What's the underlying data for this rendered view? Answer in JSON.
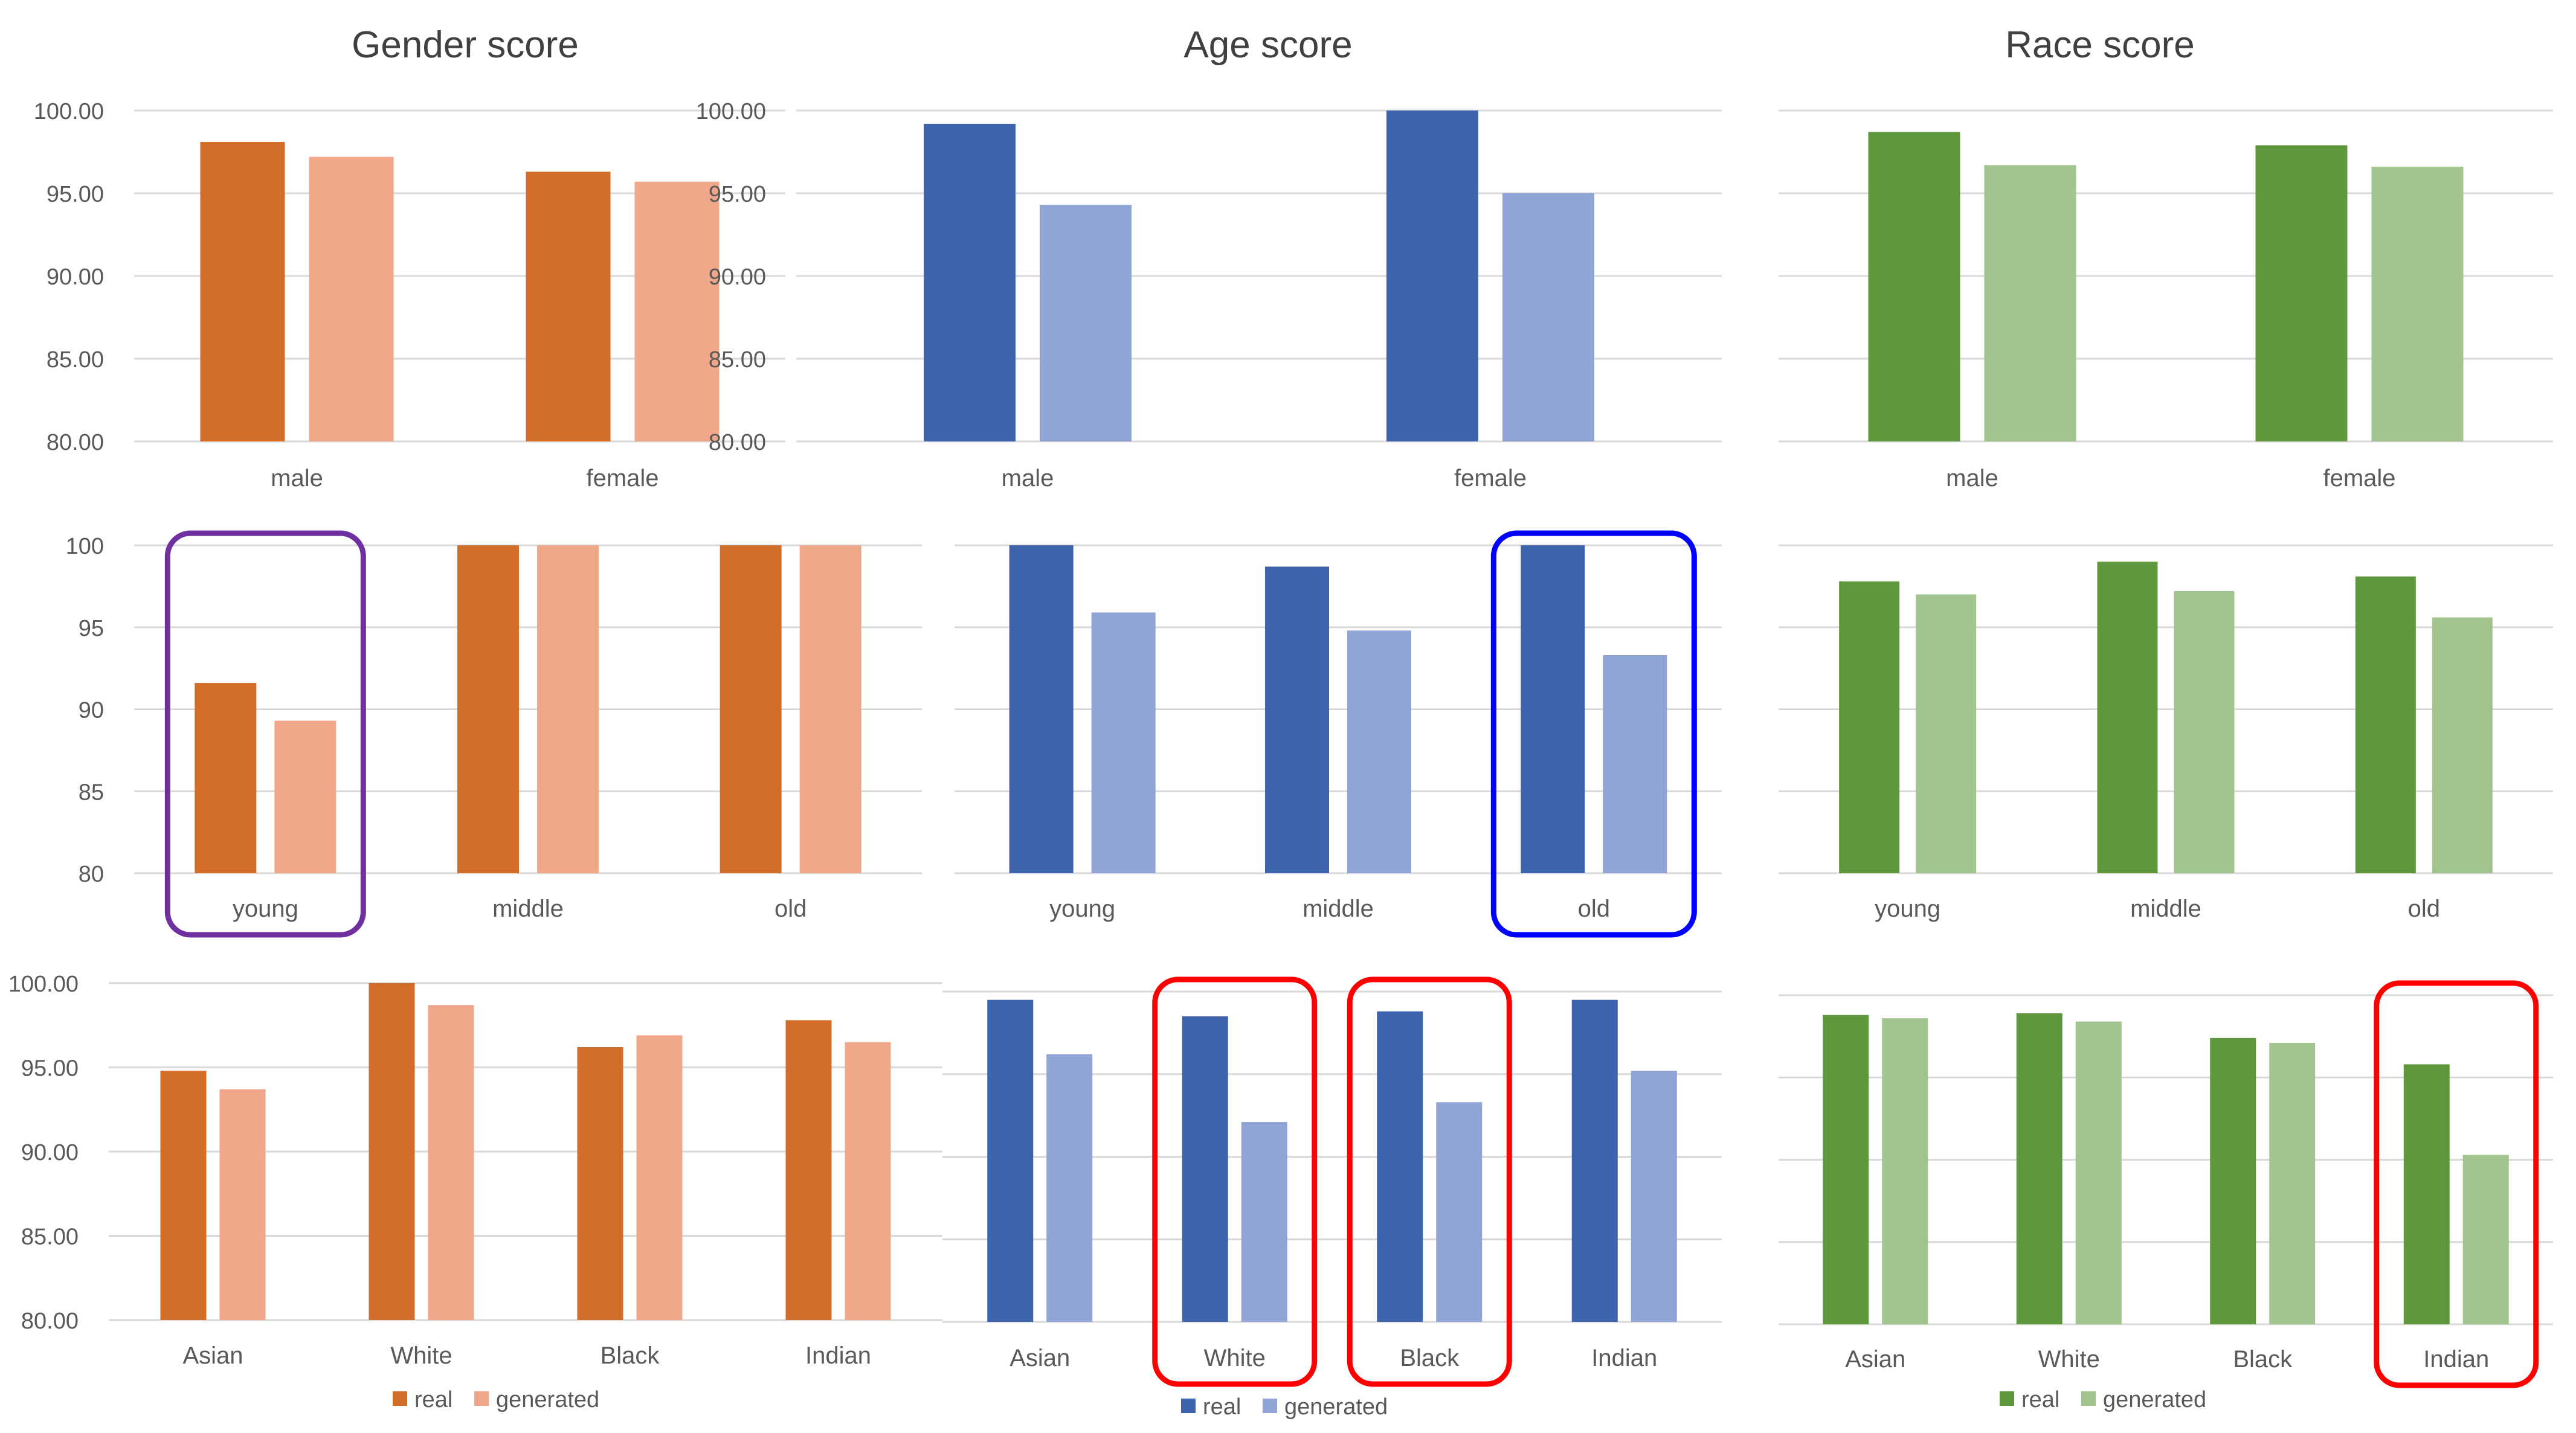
{
  "colors": {
    "gender_real": "#D26E2A",
    "gender_generated": "#F0A78A",
    "age_real": "#3D64AD",
    "age_generated": "#90A4D5",
    "race_real": "#5F983C",
    "race_generated": "#A2C48E",
    "grid": "#D9D9D9",
    "text": "#595959",
    "title": "#404040",
    "box_purple": "#7030A0",
    "box_blue": "#0000FF",
    "box_red": "#FF0000"
  },
  "column_titles": [
    "Gender score",
    "Age score",
    "Race score"
  ],
  "legend": {
    "real": "real",
    "generated": "generated"
  },
  "chart_data": [
    {
      "type": "bar",
      "panel": "gender-by-gender",
      "title": "Gender score",
      "categories": [
        "male",
        "female"
      ],
      "series": [
        {
          "name": "real",
          "values": [
            98.1,
            96.3
          ]
        },
        {
          "name": "generated",
          "values": [
            97.2,
            95.7
          ]
        }
      ],
      "ylim": [
        80,
        100
      ],
      "yticks": [
        "80.00",
        "85.00",
        "90.00",
        "95.00",
        "100.00"
      ],
      "grid": true,
      "highlight": []
    },
    {
      "type": "bar",
      "panel": "age-by-gender",
      "title": "Age score",
      "categories": [
        "male",
        "female"
      ],
      "series": [
        {
          "name": "real",
          "values": [
            99.2,
            100.0
          ]
        },
        {
          "name": "generated",
          "values": [
            94.3,
            95.0
          ]
        }
      ],
      "ylim": [
        80,
        100
      ],
      "yticks": [
        "80.00",
        "85.00",
        "90.00",
        "95.00",
        "100.00"
      ],
      "grid": true,
      "highlight": []
    },
    {
      "type": "bar",
      "panel": "race-by-gender",
      "title": "Race score",
      "categories": [
        "male",
        "female"
      ],
      "series": [
        {
          "name": "real",
          "values": [
            98.7,
            97.9
          ]
        },
        {
          "name": "generated",
          "values": [
            96.7,
            96.6
          ]
        }
      ],
      "ylim": [
        80,
        100
      ],
      "yticks": [],
      "grid": true,
      "highlight": []
    },
    {
      "type": "bar",
      "panel": "gender-by-age",
      "categories": [
        "young",
        "middle",
        "old"
      ],
      "series": [
        {
          "name": "real",
          "values": [
            91.6,
            100,
            100
          ]
        },
        {
          "name": "generated",
          "values": [
            89.3,
            100,
            100
          ]
        }
      ],
      "ylim": [
        80,
        100
      ],
      "yticks": [
        "80",
        "85",
        "90",
        "95",
        "100"
      ],
      "grid": true,
      "highlight": [
        {
          "index": 0,
          "color": "purple"
        }
      ]
    },
    {
      "type": "bar",
      "panel": "age-by-age",
      "categories": [
        "young",
        "middle",
        "old"
      ],
      "series": [
        {
          "name": "real",
          "values": [
            100,
            98.7,
            100
          ]
        },
        {
          "name": "generated",
          "values": [
            95.9,
            94.8,
            93.3
          ]
        }
      ],
      "ylim": [
        80,
        100
      ],
      "yticks": [],
      "grid": true,
      "highlight": [
        {
          "index": 2,
          "color": "blue"
        }
      ]
    },
    {
      "type": "bar",
      "panel": "race-by-age",
      "categories": [
        "young",
        "middle",
        "old"
      ],
      "series": [
        {
          "name": "real",
          "values": [
            97.8,
            99.0,
            98.1
          ]
        },
        {
          "name": "generated",
          "values": [
            97.0,
            97.2,
            95.6
          ]
        }
      ],
      "ylim": [
        80,
        100
      ],
      "yticks": [],
      "grid": true,
      "highlight": []
    },
    {
      "type": "bar",
      "panel": "gender-by-race",
      "categories": [
        "Asian",
        "White",
        "Black",
        "Indian"
      ],
      "series": [
        {
          "name": "real",
          "values": [
            94.8,
            100.0,
            96.2,
            97.8
          ]
        },
        {
          "name": "generated",
          "values": [
            93.7,
            98.7,
            96.9,
            96.5
          ]
        }
      ],
      "ylim": [
        80,
        100
      ],
      "yticks": [
        "80.00",
        "85.00",
        "90.00",
        "95.00",
        "100.00"
      ],
      "grid": true,
      "highlight": []
    },
    {
      "type": "bar",
      "panel": "age-by-race",
      "categories": [
        "Asian",
        "White",
        "Black",
        "Indian"
      ],
      "series": [
        {
          "name": "real",
          "values": [
            99.5,
            98.5,
            98.8,
            99.5
          ]
        },
        {
          "name": "generated",
          "values": [
            96.2,
            92.1,
            93.3,
            95.2
          ]
        }
      ],
      "ylim": [
        80,
        100
      ],
      "yticks": [],
      "grid": true,
      "highlight": [
        {
          "index": 1,
          "color": "red"
        },
        {
          "index": 2,
          "color": "red"
        }
      ]
    },
    {
      "type": "bar",
      "panel": "race-by-race",
      "categories": [
        "Asian",
        "White",
        "Black",
        "Indian"
      ],
      "series": [
        {
          "name": "real",
          "values": [
            98.8,
            98.9,
            97.4,
            95.8
          ]
        },
        {
          "name": "generated",
          "values": [
            98.6,
            98.4,
            97.1,
            90.3
          ]
        }
      ],
      "ylim": [
        80,
        100
      ],
      "yticks": [],
      "grid": true,
      "highlight": [
        {
          "index": 3,
          "color": "red"
        }
      ]
    }
  ]
}
